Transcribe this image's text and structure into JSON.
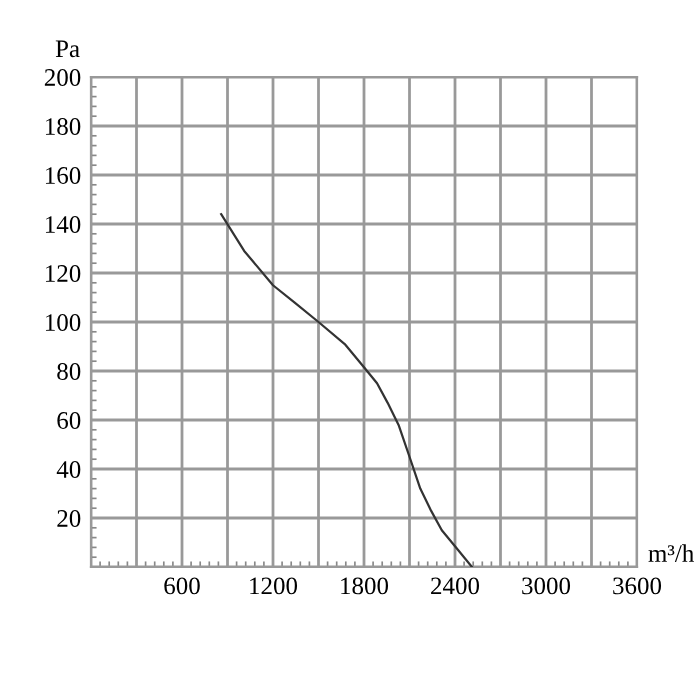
{
  "chart_data": {
    "type": "line",
    "ylabel": "Pa",
    "xlabel": "m³/h",
    "series": [
      {
        "color": "#333333",
        "x": [
          858,
          1010,
          1200,
          1341,
          1500,
          1673,
          1800,
          1886,
          1956,
          2028,
          2100,
          2171,
          2242,
          2313,
          2400,
          2512
        ],
        "values": [
          144,
          129,
          115,
          108,
          100,
          91,
          81.5,
          75,
          67,
          58,
          45,
          32,
          23,
          15,
          8.5,
          0
        ]
      }
    ],
    "xlim": [
      0,
      3600
    ],
    "ylim": [
      0,
      200
    ],
    "xticks": [
      {
        "value": 0,
        "label": null
      },
      {
        "value": 300,
        "label": null
      },
      600,
      {
        "value": 900,
        "label": null
      },
      1200,
      {
        "value": 1500,
        "label": null
      },
      1800,
      {
        "value": 2100,
        "label": null
      },
      2400,
      {
        "value": 2700,
        "label": null
      },
      3000,
      {
        "value": 3300,
        "label": null
      },
      3600
    ],
    "yticks": [
      {
        "value": 0,
        "label": null
      },
      20,
      40,
      60,
      80,
      100,
      120,
      140,
      160,
      180,
      200
    ],
    "grid": true,
    "marker": "none",
    "line_style": "solid"
  }
}
